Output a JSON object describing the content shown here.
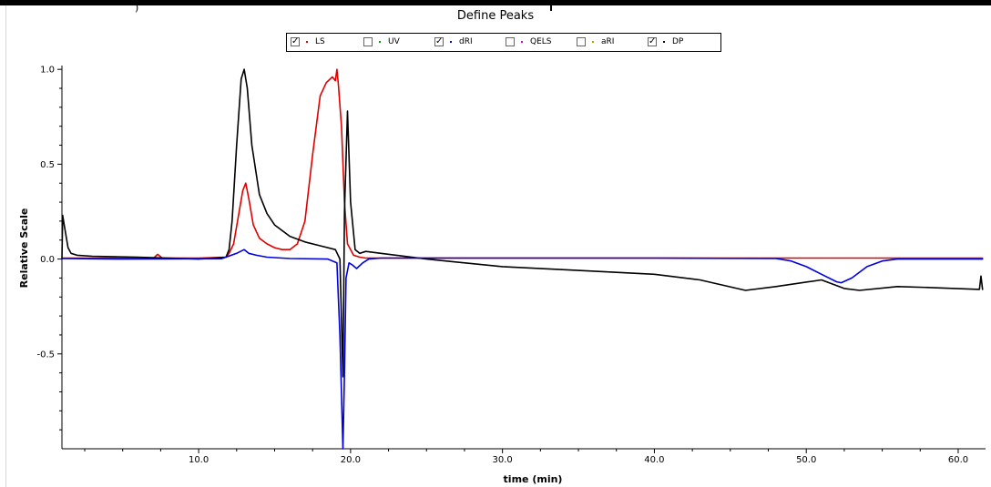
{
  "window": {
    "top_fragment": ")",
    "title": "Define Peaks"
  },
  "legend": [
    {
      "label": "LS",
      "checked": true,
      "color": "#e00000"
    },
    {
      "label": "UV",
      "checked": false,
      "color": "#00a000"
    },
    {
      "label": "dRI",
      "checked": true,
      "color": "#0000e0"
    },
    {
      "label": "QELS",
      "checked": false,
      "color": "#e000e0"
    },
    {
      "label": "aRI",
      "checked": false,
      "color": "#b0a000"
    },
    {
      "label": "DP",
      "checked": true,
      "color": "#000000"
    }
  ],
  "chart_data": {
    "type": "line",
    "title": "Define Peaks",
    "xlabel": "time (min)",
    "ylabel": "Relative Scale",
    "xlim": [
      1.0,
      61.8
    ],
    "ylim": [
      -1.0,
      1.02
    ],
    "xticks": [
      10.0,
      20.0,
      30.0,
      40.0,
      50.0,
      60.0
    ],
    "xtick_labels": [
      "10.0",
      "20.0",
      "30.0",
      "40.0",
      "50.0",
      "60.0"
    ],
    "yticks": [
      1.0,
      0.5,
      0.0,
      -0.5
    ],
    "ytick_labels": [
      "1.0",
      "0.5",
      "0.0",
      "-0.5"
    ],
    "grid": false,
    "legend_position": "top-center",
    "series": [
      {
        "name": "LS",
        "color": "#e00000",
        "x": [
          1.0,
          5.0,
          7.0,
          7.3,
          7.6,
          10.0,
          11.8,
          12.0,
          12.3,
          12.6,
          12.9,
          13.1,
          13.3,
          13.6,
          14.0,
          14.5,
          15.0,
          15.5,
          16.0,
          16.5,
          17.0,
          17.5,
          18.0,
          18.4,
          18.8,
          19.0,
          19.1,
          19.2,
          19.4,
          19.6,
          19.8,
          20.2,
          20.6,
          21.0,
          23.0,
          28.0,
          35.0,
          45.0,
          55.0,
          61.6
        ],
        "y": [
          0.005,
          0.005,
          0.003,
          0.025,
          0.005,
          0.005,
          0.01,
          0.03,
          0.08,
          0.22,
          0.36,
          0.4,
          0.32,
          0.18,
          0.11,
          0.08,
          0.06,
          0.05,
          0.05,
          0.08,
          0.2,
          0.55,
          0.86,
          0.93,
          0.96,
          0.94,
          1.0,
          0.92,
          0.7,
          0.3,
          0.08,
          0.02,
          0.01,
          0.005,
          0.005,
          0.005,
          0.005,
          0.005,
          0.005,
          0.005
        ]
      },
      {
        "name": "dRI",
        "color": "#0000e0",
        "x": [
          1.0,
          5.0,
          11.5,
          12.5,
          13.0,
          13.3,
          13.8,
          14.5,
          16.0,
          18.5,
          19.1,
          19.3,
          19.5,
          19.6,
          19.7,
          19.9,
          20.1,
          20.4,
          20.8,
          21.2,
          22.0,
          30.0,
          40.0,
          48.0,
          49.0,
          50.0,
          51.0,
          52.0,
          52.3,
          53.0,
          54.0,
          55.0,
          56.0,
          61.6
        ],
        "y": [
          0.003,
          0.0,
          0.002,
          0.03,
          0.05,
          0.03,
          0.02,
          0.01,
          0.003,
          0.0,
          -0.02,
          -0.4,
          -1.0,
          -0.6,
          -0.1,
          -0.02,
          -0.03,
          -0.05,
          -0.02,
          0.0,
          0.005,
          0.005,
          0.005,
          0.003,
          -0.01,
          -0.04,
          -0.08,
          -0.12,
          -0.125,
          -0.1,
          -0.04,
          -0.01,
          0.0,
          0.0
        ]
      },
      {
        "name": "DP",
        "color": "#000000",
        "x": [
          1.0,
          1.05,
          1.15,
          1.4,
          1.6,
          2.0,
          3.0,
          6.0,
          10.0,
          11.8,
          12.0,
          12.2,
          12.5,
          12.8,
          13.0,
          13.2,
          13.5,
          14.0,
          14.5,
          15.0,
          16.0,
          17.0,
          18.0,
          19.0,
          19.3,
          19.5,
          19.6,
          19.8,
          20.0,
          20.3,
          20.6,
          21.0,
          22.0,
          25.0,
          30.0,
          35.0,
          40.0,
          43.0,
          46.0,
          48.0,
          51.0,
          52.5,
          53.5,
          56.0,
          58.0,
          61.4,
          61.5,
          61.6
        ],
        "y": [
          0.0,
          0.23,
          0.18,
          0.06,
          0.03,
          0.02,
          0.015,
          0.01,
          0.0,
          0.01,
          0.05,
          0.2,
          0.6,
          0.95,
          1.0,
          0.9,
          0.6,
          0.34,
          0.24,
          0.18,
          0.12,
          0.09,
          0.07,
          0.05,
          0.0,
          -0.62,
          0.25,
          0.78,
          0.3,
          0.05,
          0.03,
          0.04,
          0.03,
          0.0,
          -0.04,
          -0.06,
          -0.08,
          -0.11,
          -0.165,
          -0.145,
          -0.11,
          -0.155,
          -0.165,
          -0.145,
          -0.15,
          -0.16,
          -0.09,
          -0.16
        ]
      }
    ]
  }
}
